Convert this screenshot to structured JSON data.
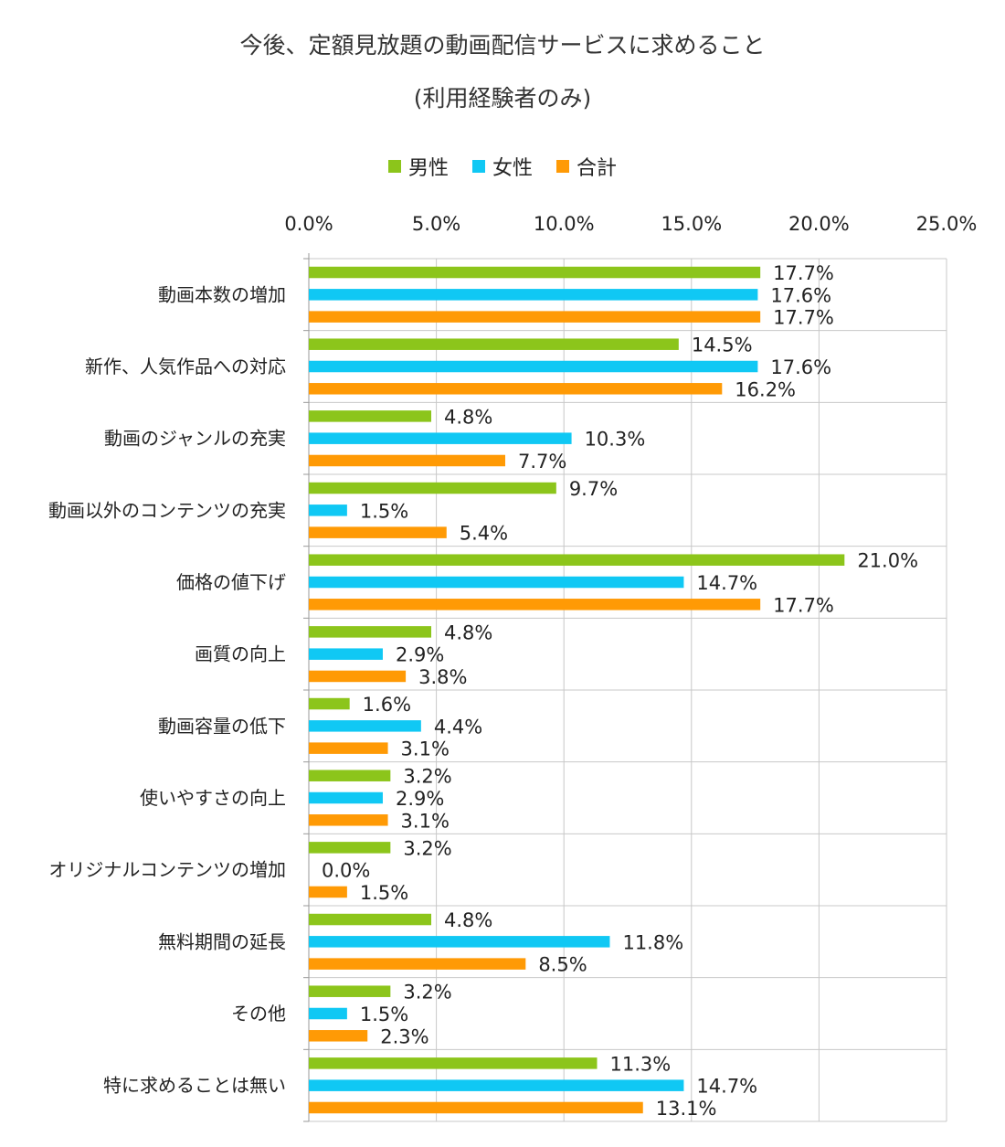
{
  "chart_data": {
    "type": "bar",
    "orientation": "horizontal",
    "title": "今後、定額見放題の動画配信サービスに求めること",
    "subtitle": "(利用経験者のみ)",
    "xlim": [
      0,
      25
    ],
    "x_ticks": [
      "0.0%",
      "5.0%",
      "10.0%",
      "15.0%",
      "20.0%",
      "25.0%"
    ],
    "grid": true,
    "legend_position": "top",
    "categories": [
      "動画本数の増加",
      "新作、人気作品への対応",
      "動画のジャンルの充実",
      "動画以外のコンテンツの充実",
      "価格の値下げ",
      "画質の向上",
      "動画容量の低下",
      "使いやすさの向上",
      "オリジナルコンテンツの増加",
      "無料期間の延長",
      "その他",
      "特に求めることは無い"
    ],
    "series": [
      {
        "name": "男性",
        "color": "#8cc51b",
        "values": [
          17.7,
          14.5,
          4.8,
          9.7,
          21.0,
          4.8,
          1.6,
          3.2,
          3.2,
          4.8,
          3.2,
          11.3
        ]
      },
      {
        "name": "女性",
        "color": "#10c8f4",
        "values": [
          17.6,
          17.6,
          10.3,
          1.5,
          14.7,
          2.9,
          4.4,
          2.9,
          0.0,
          11.8,
          1.5,
          14.7
        ]
      },
      {
        "name": "合計",
        "color": "#ff9a05",
        "values": [
          17.7,
          16.2,
          7.7,
          5.4,
          17.7,
          3.8,
          3.1,
          3.1,
          1.5,
          8.5,
          2.3,
          13.1
        ]
      }
    ]
  }
}
